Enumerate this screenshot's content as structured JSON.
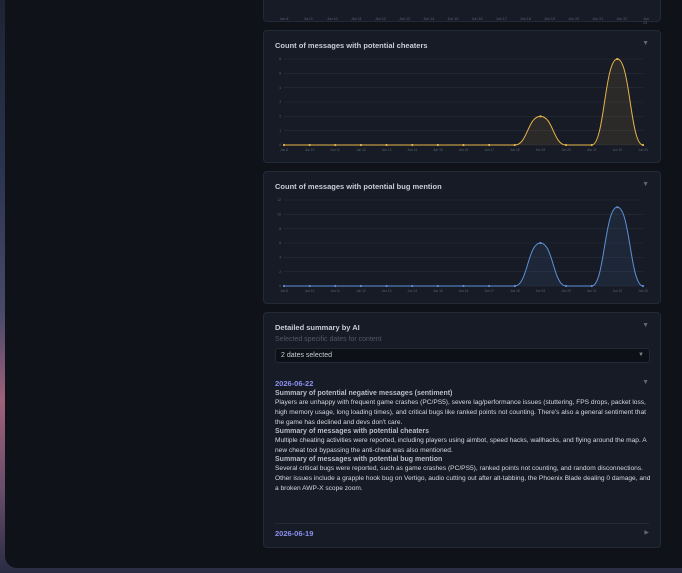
{
  "top_chart": {
    "ticks": [
      "Jun 8",
      "Jun 9",
      "Jun 10",
      "Jun 11",
      "Jun 12",
      "Jun 13",
      "Jun 14",
      "Jun 15",
      "Jun 16",
      "Jun 17",
      "Jun 18",
      "Jun 19",
      "Jun 20",
      "Jun 21",
      "Jun 22",
      "Jun 23"
    ]
  },
  "cheaters_panel": {
    "title": "Count of messages with potential cheaters",
    "collapse_icon": "triangle-down-icon"
  },
  "bugs_panel": {
    "title": "Count of messages with potential bug mention",
    "collapse_icon": "triangle-down-icon"
  },
  "chart_data": [
    {
      "type": "area",
      "title": "Count of messages with potential cheaters",
      "x": [
        "Jun 8",
        "Jun 10",
        "Jun 11",
        "Jun 12",
        "Jun 13",
        "Jun 14",
        "Jun 15",
        "Jun 16",
        "Jun 17",
        "Jun 18",
        "Jun 19",
        "Jun 20",
        "Jun 21",
        "Jun 22",
        "Jun 23"
      ],
      "series": [
        {
          "values": [
            0,
            0,
            0,
            0,
            0,
            0,
            0,
            0,
            0,
            0,
            2,
            0,
            0,
            6,
            0
          ]
        }
      ],
      "y_ticks": [
        0,
        1,
        2,
        3,
        4,
        5,
        6
      ],
      "ylim": [
        0,
        6
      ],
      "grid": true,
      "color": "#e8b44a"
    },
    {
      "type": "area",
      "title": "Count of messages with potential bug mention",
      "x": [
        "Jun 8",
        "Jun 10",
        "Jun 11",
        "Jun 12",
        "Jun 13",
        "Jun 14",
        "Jun 15",
        "Jun 16",
        "Jun 17",
        "Jun 18",
        "Jun 19",
        "Jun 20",
        "Jun 21",
        "Jun 22",
        "Jun 23"
      ],
      "series": [
        {
          "values": [
            0,
            0,
            0,
            0,
            0,
            0,
            0,
            0,
            0,
            0,
            6,
            0,
            0,
            11,
            0
          ]
        }
      ],
      "y_ticks": [
        0,
        2,
        4,
        6,
        8,
        10,
        12
      ],
      "ylim": [
        0,
        12
      ],
      "grid": true,
      "color": "#5f8fd6"
    }
  ],
  "summary": {
    "title": "Detailed summary by AI",
    "collapse_icon": "triangle-down-icon",
    "dates_label": "Selected specific dates for content",
    "dates_value": "2 dates selected",
    "dropdown_icon": "triangle-down-icon",
    "date1": {
      "label": "2026-06-22",
      "expand_icon": "triangle-down-icon",
      "sections": [
        {
          "heading": "Summary of potential negative messages (sentiment)",
          "body": "Players are unhappy with frequent game crashes (PC/PS5), severe lag/performance issues (stuttering, FPS drops, packet loss, high memory usage, long loading times), and critical bugs like ranked points not counting. There's also a general sentiment that the game has declined and devs don't care."
        },
        {
          "heading": "Summary of messages with potential cheaters",
          "body": "Multiple cheating activities were reported, including players using aimbot, speed hacks, wallhacks, and flying around the map. A new cheat tool bypassing the anti-cheat was also mentioned."
        },
        {
          "heading": "Summary of messages with potential bug mention",
          "body": "Several critical bugs were reported, such as game crashes (PC/PS5), ranked points not counting, and random disconnections. Other issues include a grapple hook bug on Vertigo, audio cutting out after alt-tabbing, the Phoenix Blade dealing 0 damage, and a broken AWP-X scope zoom."
        }
      ]
    },
    "date2": {
      "label": "2026-06-19",
      "expand_icon": "triangle-right-icon"
    }
  }
}
